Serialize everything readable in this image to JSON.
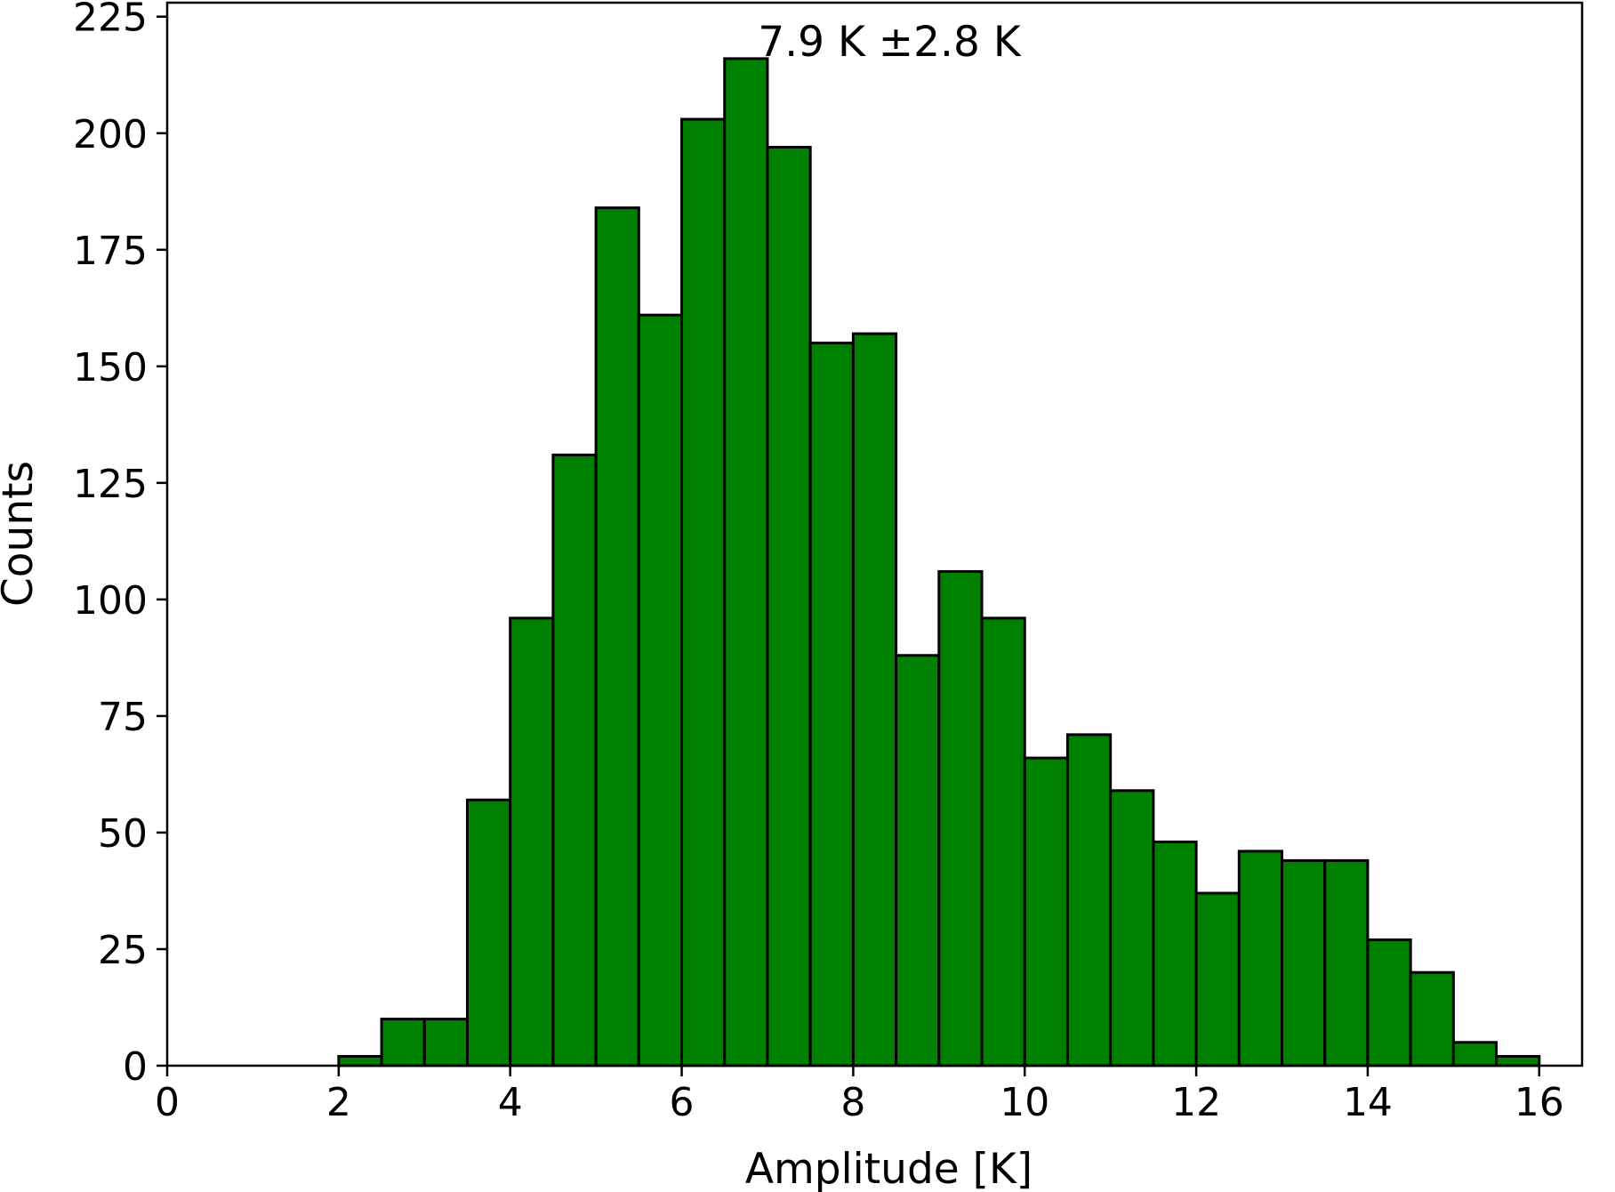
{
  "chart_data": {
    "type": "bar",
    "subtype": "histogram",
    "title": "",
    "xlabel": "Amplitude [K]",
    "ylabel": "Counts",
    "annotation": "7.9 K ±2.8 K",
    "xlim": [
      0,
      16.5
    ],
    "ylim": [
      0,
      228
    ],
    "xticks": [
      0,
      2,
      4,
      6,
      8,
      10,
      12,
      14,
      16
    ],
    "yticks": [
      0,
      25,
      50,
      75,
      100,
      125,
      150,
      175,
      200,
      225
    ],
    "bins": [
      {
        "x0": 2.0,
        "x1": 2.5,
        "count": 2
      },
      {
        "x0": 2.5,
        "x1": 3.0,
        "count": 10
      },
      {
        "x0": 3.0,
        "x1": 3.5,
        "count": 10
      },
      {
        "x0": 3.5,
        "x1": 4.0,
        "count": 57
      },
      {
        "x0": 4.0,
        "x1": 4.5,
        "count": 96
      },
      {
        "x0": 4.5,
        "x1": 5.0,
        "count": 131
      },
      {
        "x0": 5.0,
        "x1": 5.5,
        "count": 184
      },
      {
        "x0": 5.5,
        "x1": 6.0,
        "count": 161
      },
      {
        "x0": 6.0,
        "x1": 6.5,
        "count": 203
      },
      {
        "x0": 6.5,
        "x1": 7.0,
        "count": 216
      },
      {
        "x0": 7.0,
        "x1": 7.5,
        "count": 197
      },
      {
        "x0": 7.5,
        "x1": 8.0,
        "count": 155
      },
      {
        "x0": 8.0,
        "x1": 8.5,
        "count": 157
      },
      {
        "x0": 8.5,
        "x1": 9.0,
        "count": 88
      },
      {
        "x0": 9.0,
        "x1": 9.5,
        "count": 106
      },
      {
        "x0": 9.5,
        "x1": 10.0,
        "count": 96
      },
      {
        "x0": 10.0,
        "x1": 10.5,
        "count": 66
      },
      {
        "x0": 10.5,
        "x1": 11.0,
        "count": 71
      },
      {
        "x0": 11.0,
        "x1": 11.5,
        "count": 59
      },
      {
        "x0": 11.5,
        "x1": 12.0,
        "count": 48
      },
      {
        "x0": 12.0,
        "x1": 12.5,
        "count": 37
      },
      {
        "x0": 12.5,
        "x1": 13.0,
        "count": 46
      },
      {
        "x0": 13.0,
        "x1": 13.5,
        "count": 44
      },
      {
        "x0": 13.5,
        "x1": 14.0,
        "count": 44
      },
      {
        "x0": 14.0,
        "x1": 14.5,
        "count": 27
      },
      {
        "x0": 14.5,
        "x1": 15.0,
        "count": 20
      },
      {
        "x0": 15.0,
        "x1": 15.5,
        "count": 5
      },
      {
        "x0": 15.5,
        "x1": 16.0,
        "count": 2
      }
    ],
    "grid": false,
    "legend": "none",
    "colors": {
      "bar_fill": "#008000",
      "bar_edge": "#000000",
      "axis": "#000000",
      "background": "#ffffff"
    }
  }
}
